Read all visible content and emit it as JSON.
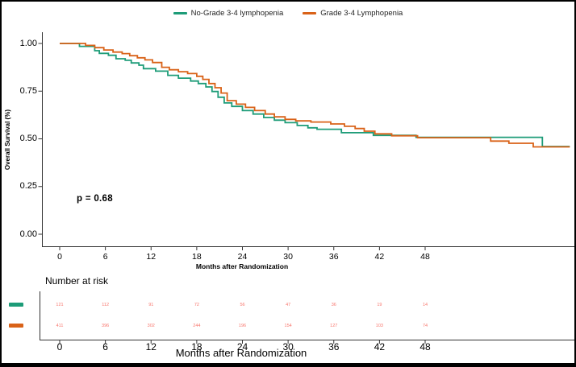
{
  "colors": {
    "no_grade_series": "#1d9c78",
    "grade_series": "#d96218",
    "risk_numbers": "#f8766d",
    "axis": "#333333",
    "background": "#ffffff"
  },
  "annotation_text": "p = 0.68",
  "chart_data": {
    "type": "line",
    "subtype": "kaplan-meier-step",
    "title": "",
    "xlabel": "Months after Randomization",
    "ylabel": "Overall Survival (%)",
    "xlim": [
      0,
      67
    ],
    "ylim": [
      0,
      1.0
    ],
    "grid": false,
    "legend_position": "top",
    "xticks": [
      0,
      6,
      12,
      18,
      24,
      30,
      36,
      42,
      48
    ],
    "ytick_values": [
      0,
      0.25,
      0.5,
      0.75,
      1
    ],
    "ytick_labels": [
      "0.00",
      "0.25",
      "0.50",
      "0.75",
      "1.00"
    ],
    "annotation": {
      "text": "p = 0.68",
      "x_month": 3,
      "y_survival": 0.2
    },
    "series": [
      {
        "name": "No-Grade 3-4 lymphopenia",
        "color": "#1d9c78",
        "points": [
          [
            0,
            1.0
          ],
          [
            2.6,
            0.985
          ],
          [
            4.6,
            0.962
          ],
          [
            5.2,
            0.948
          ],
          [
            6.4,
            0.938
          ],
          [
            7.4,
            0.92
          ],
          [
            8.6,
            0.912
          ],
          [
            9.4,
            0.898
          ],
          [
            10.4,
            0.886
          ],
          [
            11.0,
            0.868
          ],
          [
            12.6,
            0.855
          ],
          [
            14.2,
            0.833
          ],
          [
            15.6,
            0.818
          ],
          [
            17.2,
            0.803
          ],
          [
            18.2,
            0.79
          ],
          [
            19.2,
            0.772
          ],
          [
            20.0,
            0.748
          ],
          [
            20.8,
            0.718
          ],
          [
            21.6,
            0.688
          ],
          [
            22.6,
            0.67
          ],
          [
            24.0,
            0.648
          ],
          [
            25.4,
            0.63
          ],
          [
            26.8,
            0.612
          ],
          [
            28.2,
            0.598
          ],
          [
            29.6,
            0.585
          ],
          [
            31.2,
            0.57
          ],
          [
            32.6,
            0.558
          ],
          [
            33.8,
            0.55
          ],
          [
            37.0,
            0.532
          ],
          [
            41.2,
            0.518
          ],
          [
            46.8,
            0.508
          ],
          [
            63.4,
            0.46
          ],
          [
            67,
            0.46
          ]
        ]
      },
      {
        "name": "Grade 3-4 Lymphopenia",
        "color": "#d96218",
        "points": [
          [
            0,
            1.0
          ],
          [
            3.4,
            0.99
          ],
          [
            4.6,
            0.978
          ],
          [
            5.8,
            0.966
          ],
          [
            7.0,
            0.955
          ],
          [
            8.2,
            0.947
          ],
          [
            9.2,
            0.936
          ],
          [
            10.2,
            0.925
          ],
          [
            11.2,
            0.914
          ],
          [
            12.2,
            0.9
          ],
          [
            13.4,
            0.875
          ],
          [
            14.4,
            0.862
          ],
          [
            15.6,
            0.852
          ],
          [
            16.8,
            0.842
          ],
          [
            18.0,
            0.828
          ],
          [
            18.8,
            0.812
          ],
          [
            19.6,
            0.79
          ],
          [
            20.4,
            0.768
          ],
          [
            21.2,
            0.74
          ],
          [
            22.0,
            0.7
          ],
          [
            23.2,
            0.682
          ],
          [
            24.4,
            0.665
          ],
          [
            25.6,
            0.648
          ],
          [
            27.0,
            0.63
          ],
          [
            28.2,
            0.615
          ],
          [
            29.6,
            0.602
          ],
          [
            31.0,
            0.594
          ],
          [
            33.0,
            0.588
          ],
          [
            35.6,
            0.578
          ],
          [
            37.4,
            0.566
          ],
          [
            38.8,
            0.554
          ],
          [
            40.0,
            0.54
          ],
          [
            41.4,
            0.526
          ],
          [
            43.6,
            0.516
          ],
          [
            47.0,
            0.506
          ],
          [
            56.6,
            0.488
          ],
          [
            59.0,
            0.477
          ],
          [
            62.2,
            0.458
          ],
          [
            67,
            0.458
          ]
        ]
      }
    ],
    "number_at_risk": {
      "title": "Number at risk",
      "xlabel": "Months after Randomization",
      "months": [
        0,
        6,
        12,
        18,
        24,
        30,
        36,
        42,
        48
      ],
      "rows": [
        {
          "name": "No-Grade 3-4 lymphopenia",
          "color": "#1d9c78",
          "counts": [
            121,
            112,
            91,
            72,
            56,
            47,
            36,
            19,
            14
          ]
        },
        {
          "name": "Grade 3-4 Lymphopenia",
          "color": "#d96218",
          "counts": [
            411,
            396,
            302,
            244,
            196,
            154,
            127,
            103,
            74
          ]
        }
      ]
    }
  }
}
